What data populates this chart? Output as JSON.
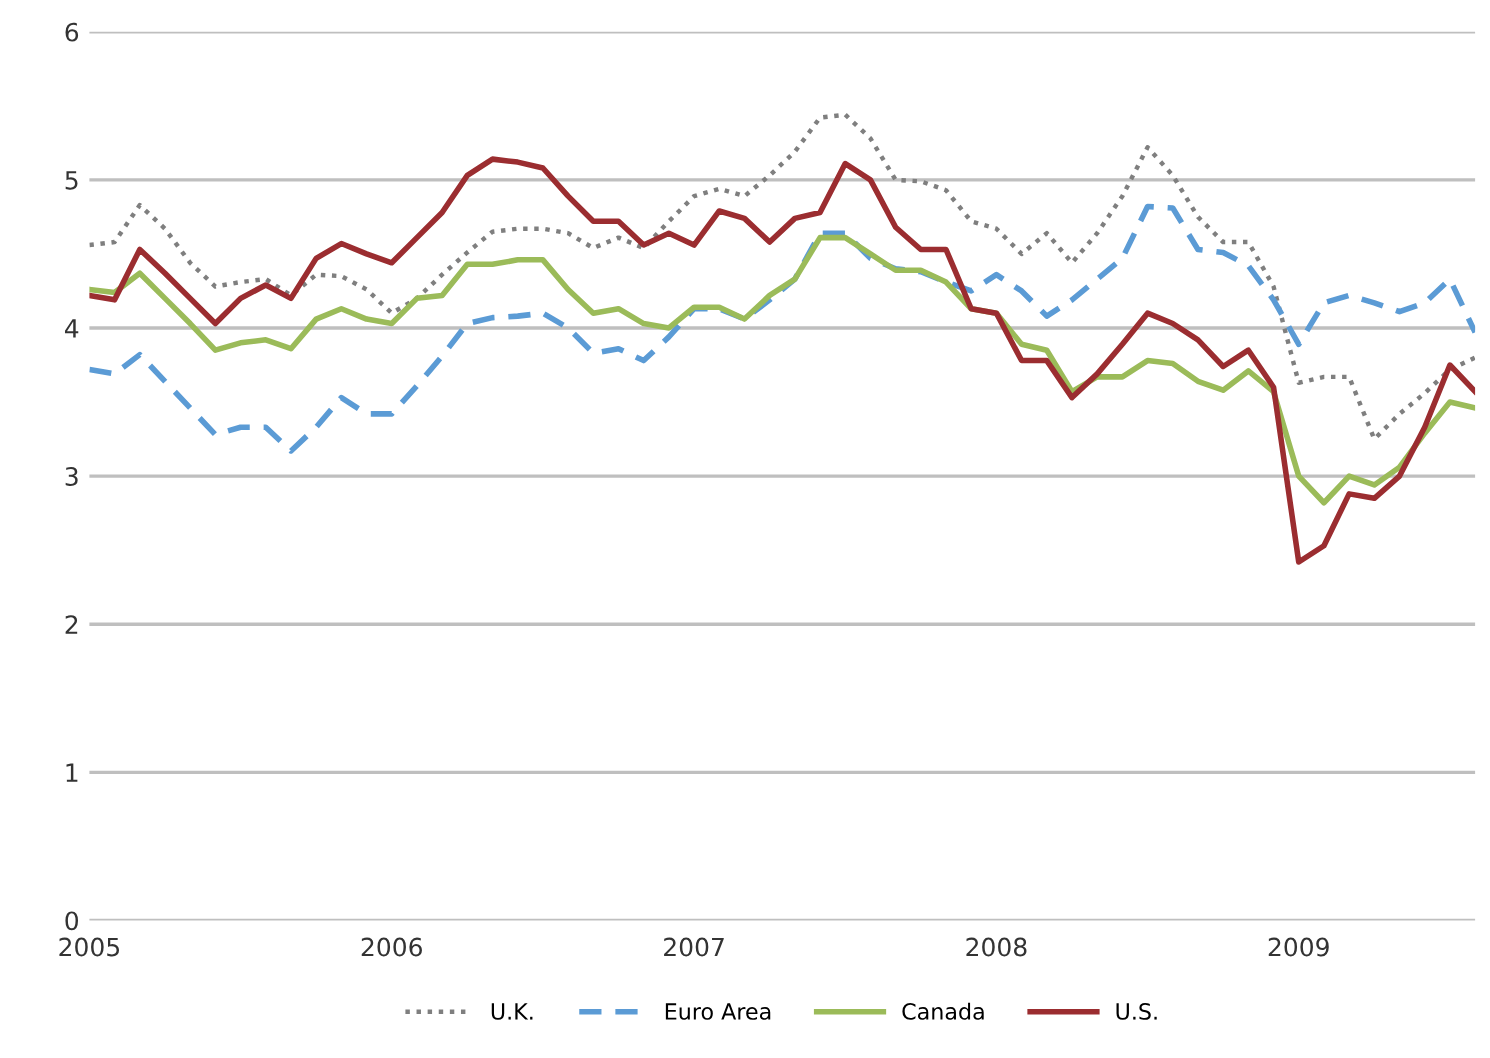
{
  "chart_data": {
    "type": "line",
    "x": [
      "2005-01",
      "2005-02",
      "2005-03",
      "2005-04",
      "2005-05",
      "2005-06",
      "2005-07",
      "2005-08",
      "2005-09",
      "2005-10",
      "2005-11",
      "2005-12",
      "2006-01",
      "2006-02",
      "2006-03",
      "2006-04",
      "2006-05",
      "2006-06",
      "2006-07",
      "2006-08",
      "2006-09",
      "2006-10",
      "2006-11",
      "2006-12",
      "2007-01",
      "2007-02",
      "2007-03",
      "2007-04",
      "2007-05",
      "2007-06",
      "2007-07",
      "2007-08",
      "2007-09",
      "2007-10",
      "2007-11",
      "2007-12",
      "2008-01",
      "2008-02",
      "2008-03",
      "2008-04",
      "2008-05",
      "2008-06",
      "2008-07",
      "2008-08",
      "2008-09",
      "2008-10",
      "2008-11",
      "2008-12",
      "2009-01",
      "2009-02",
      "2009-03",
      "2009-04",
      "2009-05",
      "2009-06",
      "2009-07",
      "2009-08"
    ],
    "series": [
      {
        "name": "U.K.",
        "color": "#7f7f7f",
        "line_style": "dotted",
        "values": [
          4.56,
          4.58,
          4.83,
          4.67,
          4.44,
          4.28,
          4.31,
          4.33,
          4.22,
          4.36,
          4.35,
          4.26,
          4.1,
          4.2,
          4.36,
          4.51,
          4.65,
          4.67,
          4.67,
          4.64,
          4.54,
          4.61,
          4.54,
          4.72,
          4.89,
          4.94,
          4.89,
          5.03,
          5.19,
          5.42,
          5.44,
          5.28,
          5.0,
          4.99,
          4.93,
          4.72,
          4.67,
          4.5,
          4.64,
          4.44,
          4.64,
          4.89,
          5.22,
          5.03,
          4.75,
          4.58,
          4.58,
          4.28,
          3.63,
          3.67,
          3.67,
          3.25,
          3.42,
          3.56,
          3.72,
          3.8
        ]
      },
      {
        "name": "Euro Area",
        "color": "#5b9bd5",
        "line_style": "dashed",
        "values": [
          3.72,
          3.69,
          3.82,
          3.64,
          3.46,
          3.28,
          3.33,
          3.33,
          3.17,
          3.33,
          3.53,
          3.42,
          3.42,
          3.61,
          3.81,
          4.03,
          4.07,
          4.08,
          4.1,
          4.0,
          3.83,
          3.86,
          3.78,
          3.94,
          4.13,
          4.13,
          4.06,
          4.19,
          4.33,
          4.64,
          4.64,
          4.47,
          4.4,
          4.38,
          4.31,
          4.25,
          4.36,
          4.25,
          4.08,
          4.19,
          4.33,
          4.47,
          4.82,
          4.81,
          4.53,
          4.51,
          4.42,
          4.19,
          3.89,
          4.17,
          4.22,
          4.17,
          4.11,
          4.17,
          4.33,
          3.97
        ]
      },
      {
        "name": "Canada",
        "color": "#9bbb59",
        "line_style": "solid",
        "values": [
          4.26,
          4.24,
          4.37,
          4.2,
          4.03,
          3.85,
          3.9,
          3.92,
          3.86,
          4.06,
          4.13,
          4.06,
          4.03,
          4.2,
          4.22,
          4.43,
          4.43,
          4.46,
          4.46,
          4.26,
          4.1,
          4.13,
          4.03,
          4.0,
          4.14,
          4.14,
          4.06,
          4.22,
          4.33,
          4.61,
          4.61,
          4.5,
          4.39,
          4.39,
          4.31,
          4.13,
          4.1,
          3.89,
          3.85,
          3.57,
          3.67,
          3.67,
          3.78,
          3.76,
          3.64,
          3.58,
          3.71,
          3.57,
          3.0,
          2.82,
          3.0,
          2.94,
          3.06,
          3.29,
          3.5,
          3.46
        ]
      },
      {
        "name": "U.S.",
        "color": "#9b2d30",
        "line_style": "solid",
        "values": [
          4.22,
          4.19,
          4.53,
          4.37,
          4.2,
          4.03,
          4.2,
          4.29,
          4.2,
          4.47,
          4.57,
          4.5,
          4.44,
          4.61,
          4.78,
          5.03,
          5.14,
          5.12,
          5.08,
          4.89,
          4.72,
          4.72,
          4.56,
          4.64,
          4.56,
          4.79,
          4.74,
          4.58,
          4.74,
          4.78,
          5.11,
          5.0,
          4.68,
          4.53,
          4.53,
          4.13,
          4.1,
          3.78,
          3.78,
          3.53,
          3.69,
          3.89,
          4.1,
          4.03,
          3.92,
          3.74,
          3.85,
          3.6,
          2.42,
          2.53,
          2.88,
          2.85,
          3.0,
          3.33,
          3.75,
          3.57
        ]
      }
    ],
    "xlim": [
      "2005-01",
      "2009-08"
    ],
    "xticks": [
      {
        "value": "2005-01",
        "label": "2005"
      },
      {
        "value": "2006-01",
        "label": "2006"
      },
      {
        "value": "2007-01",
        "label": "2007"
      },
      {
        "value": "2008-01",
        "label": "2008"
      },
      {
        "value": "2009-01",
        "label": "2009"
      }
    ],
    "ylim": [
      0,
      6
    ],
    "yticks": [
      0,
      1,
      2,
      3,
      4,
      5,
      6
    ],
    "grid": "y",
    "legend": "bottom"
  }
}
